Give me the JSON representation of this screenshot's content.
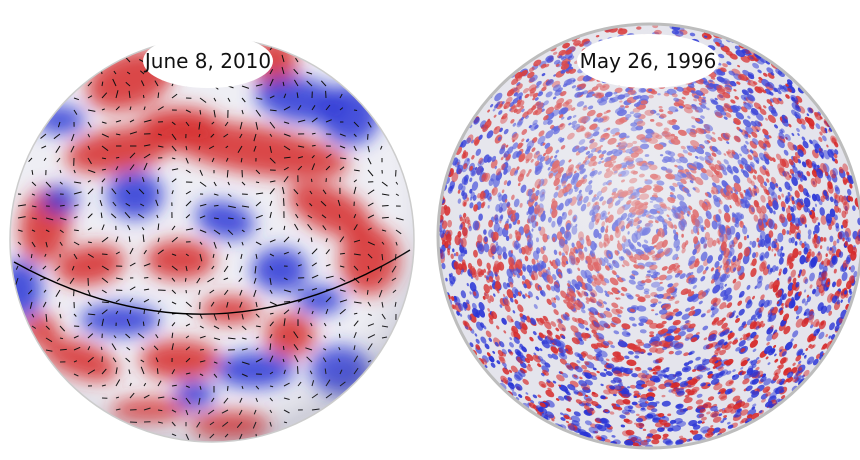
{
  "panels": [
    {
      "date_label": "June 8, 2010"
    },
    {
      "date_label": "May 26, 1996"
    }
  ],
  "colors": {
    "positive": "#d62a2a",
    "negative": "#2a35d6",
    "neutral": "#e8e8ee",
    "arrows": "#111111",
    "equator_line": "#000000",
    "sphere_outline": "#bdbdbd"
  }
}
